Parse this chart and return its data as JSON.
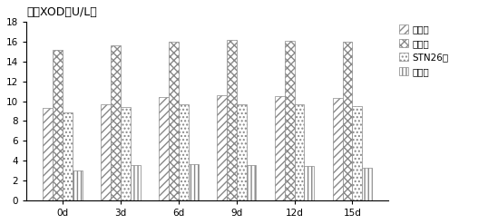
{
  "title": "血清XOD（U/L）",
  "categories": [
    "0d",
    "3d",
    "6d",
    "9d",
    "12d",
    "15d"
  ],
  "series": {
    "对照组": [
      9.3,
      9.7,
      10.4,
      10.6,
      10.5,
      10.3
    ],
    "模型组": [
      15.2,
      15.6,
      16.0,
      16.2,
      16.1,
      16.0
    ],
    "STN26组": [
      8.9,
      9.4,
      9.7,
      9.7,
      9.7,
      9.5
    ],
    "药物组": [
      3.0,
      3.6,
      3.7,
      3.6,
      3.5,
      3.3
    ]
  },
  "ylim": [
    0,
    18
  ],
  "yticks": [
    0,
    2,
    4,
    6,
    8,
    10,
    12,
    14,
    16,
    18
  ],
  "bar_width": 0.17,
  "title_fontsize": 9,
  "legend_fontsize": 7.5,
  "tick_fontsize": 7.5,
  "hatch_styles": [
    "////",
    "xxxx",
    "....",
    "||||"
  ],
  "edgecolors": [
    "#888888",
    "#888888",
    "#888888",
    "#888888"
  ]
}
